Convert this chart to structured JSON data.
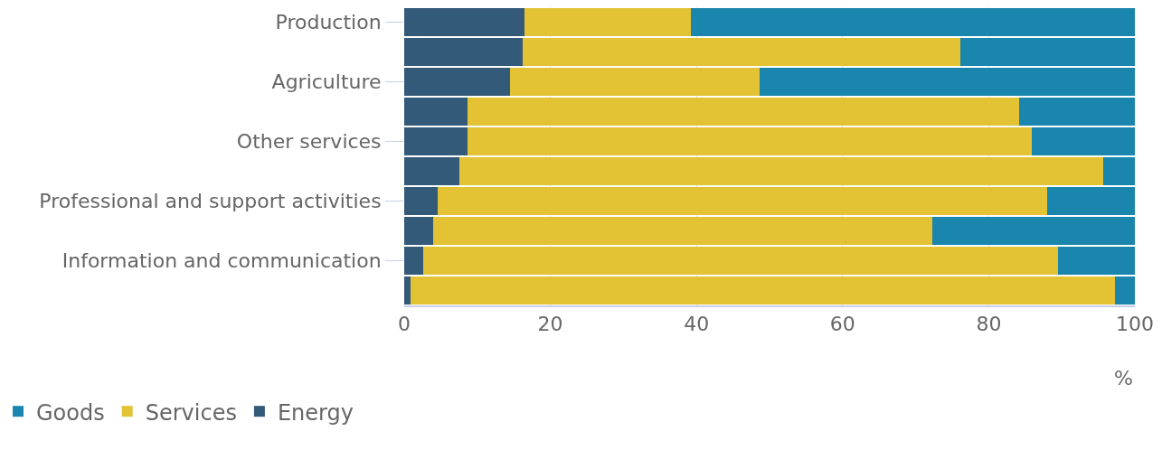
{
  "chart_data": {
    "type": "bar",
    "orientation": "horizontal",
    "stacked": true,
    "xlabel": "%",
    "categories": [
      "Production",
      null,
      "Agriculture",
      null,
      "Other services",
      null,
      "Professional and support activities",
      null,
      "Information and communication",
      null
    ],
    "series": [
      {
        "name": "Energy",
        "color": "#345a7a",
        "values": [
          16.5,
          16.2,
          14.5,
          8.7,
          8.7,
          7.5,
          4.6,
          4.0,
          2.6,
          0.9
        ]
      },
      {
        "name": "Services",
        "color": "#e3c234",
        "values": [
          22.7,
          59.9,
          34.1,
          75.5,
          77.2,
          88.2,
          83.4,
          68.3,
          86.9,
          96.4
        ]
      },
      {
        "name": "Goods",
        "color": "#1a86ae",
        "values": [
          60.8,
          23.9,
          51.4,
          15.8,
          14.1,
          4.3,
          12.0,
          27.7,
          10.5,
          2.7
        ]
      }
    ],
    "xlim": [
      0,
      100
    ],
    "xticks": [
      0,
      20,
      40,
      60,
      80,
      100
    ],
    "grid": "x",
    "legend": "bottom left"
  }
}
